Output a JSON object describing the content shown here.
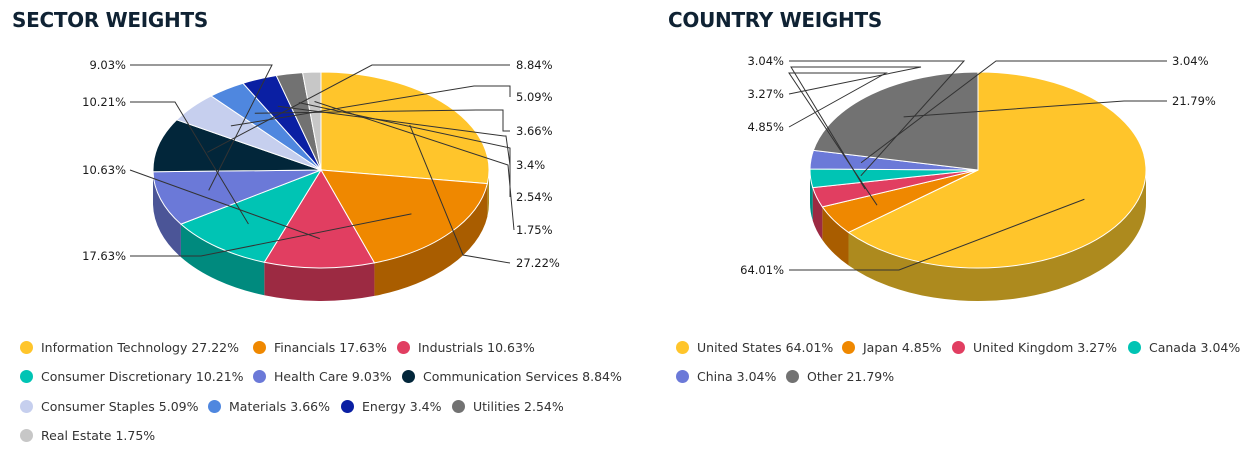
{
  "chart_data": [
    {
      "type": "pie",
      "title": "SECTOR WEIGHTS",
      "unit": "%",
      "slices": [
        {
          "label": "Information Technology",
          "value": 27.22,
          "value_label": "27.22%",
          "color": "#FFC52B",
          "side_color": "#AD8A1E"
        },
        {
          "label": "Financials",
          "value": 17.63,
          "value_label": "17.63%",
          "color": "#EF8800",
          "side_color": "#A95D00"
        },
        {
          "label": "Industrials",
          "value": 10.63,
          "value_label": "10.63%",
          "color": "#E13E61",
          "side_color": "#9C2A42"
        },
        {
          "label": "Consumer Discretionary",
          "value": 10.21,
          "value_label": "10.21%",
          "color": "#00C4B4",
          "side_color": "#008A7E"
        },
        {
          "label": "Health Care",
          "value": 9.03,
          "value_label": "9.03%",
          "color": "#6B79D8",
          "side_color": "#4B5597"
        },
        {
          "label": "Communication Services",
          "value": 8.84,
          "value_label": "8.84%",
          "color": "#02263A",
          "side_color": "#011623"
        },
        {
          "label": "Consumer Staples",
          "value": 5.09,
          "value_label": "5.09%",
          "color": "#C6CFEE",
          "side_color": "#8E95AE"
        },
        {
          "label": "Materials",
          "value": 3.66,
          "value_label": "3.66%",
          "color": "#4F87DF",
          "side_color": "#365E9C"
        },
        {
          "label": "Energy",
          "value": 3.4,
          "value_label": "3.4%",
          "color": "#0A1FA3",
          "side_color": "#061472"
        },
        {
          "label": "Utilities",
          "value": 2.54,
          "value_label": "2.54%",
          "color": "#727272",
          "side_color": "#4E4E4E"
        },
        {
          "label": "Real Estate",
          "value": 1.75,
          "value_label": "1.75%",
          "color": "#C7C7C7",
          "side_color": "#8C8C8C"
        }
      ],
      "legend": [
        "Information Technology 27.22%",
        "Financials 17.63%",
        "Industrials 10.63%",
        "Consumer Discretionary 10.21%",
        "Health Care 9.03%",
        "Communication Services 8.84%",
        "Consumer Staples 5.09%",
        "Materials 3.66%",
        "Energy 3.4%",
        "Utilities 2.54%",
        "Real Estate 1.75%"
      ],
      "legend_placement": "bottom"
    },
    {
      "type": "pie",
      "title": "COUNTRY WEIGHTS",
      "unit": "%",
      "slices": [
        {
          "label": "United States",
          "value": 64.01,
          "value_label": "64.01%",
          "color": "#FFC52B",
          "side_color": "#AD8A1E"
        },
        {
          "label": "Japan",
          "value": 4.85,
          "value_label": "4.85%",
          "color": "#EF8800",
          "side_color": "#A95D00"
        },
        {
          "label": "United Kingdom",
          "value": 3.27,
          "value_label": "3.27%",
          "color": "#E13E61",
          "side_color": "#9C2A42"
        },
        {
          "label": "Canada",
          "value": 3.04,
          "value_label": "3.04%",
          "color": "#00C4B4",
          "side_color": "#008A7E"
        },
        {
          "label": "China",
          "value": 3.04,
          "value_label": "3.04%",
          "color": "#6B79D8",
          "side_color": "#4B5597"
        },
        {
          "label": "Other",
          "value": 21.79,
          "value_label": "21.79%",
          "color": "#727272",
          "side_color": "#4E4E4E"
        }
      ],
      "legend": [
        "United States 64.01%",
        "Japan 4.85%",
        "United Kingdom 3.27%",
        "Canada 3.04%",
        "China 3.04%",
        "Other 21.79%"
      ],
      "legend_placement": "bottom"
    }
  ]
}
